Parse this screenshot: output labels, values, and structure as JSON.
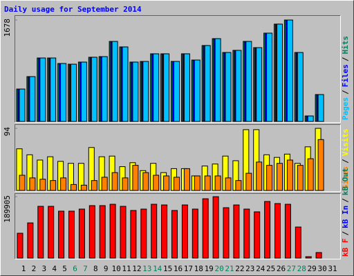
{
  "chart_data": {
    "type": "bar",
    "title": "Daily usage for September 2014",
    "title_color": "#0000ff",
    "categories": [
      "1",
      "2",
      "3",
      "4",
      "5",
      "6",
      "7",
      "8",
      "9",
      "10",
      "11",
      "12",
      "13",
      "14",
      "15",
      "16",
      "17",
      "18",
      "19",
      "20",
      "21",
      "22",
      "23",
      "24",
      "25",
      "26",
      "27",
      "28",
      "29",
      "30",
      "31"
    ],
    "category_colors": [
      "#000000",
      "#000000",
      "#000000",
      "#000000",
      "#000000",
      "#00805c",
      "#00805c",
      "#000000",
      "#000000",
      "#000000",
      "#000000",
      "#000000",
      "#00805c",
      "#00805c",
      "#000000",
      "#000000",
      "#000000",
      "#000000",
      "#000000",
      "#00805c",
      "#00805c",
      "#000000",
      "#000000",
      "#000000",
      "#000000",
      "#000000",
      "#00805c",
      "#00805c",
      "#000000",
      "#000000",
      "#000000"
    ],
    "legend_separator": "/",
    "panels": [
      {
        "ylim": [
          0,
          1678
        ],
        "yticks": [
          1678
        ],
        "series": [
          {
            "name": "Pages",
            "color": "#00c0ff",
            "values": [
              536,
              742,
              1050,
              1050,
              959,
              947,
              982,
              1062,
              1073,
              1324,
              1233,
              982,
              993,
              1119,
              1119,
              993,
              1119,
              1016,
              1256,
              1370,
              1141,
              1176,
              1324,
              1221,
              1461,
              1610,
              1678,
              1141,
              91,
              445,
              0
            ]
          },
          {
            "name": "Files",
            "color": "#0000ff",
            "values": [
              536,
              742,
              1050,
              1050,
              959,
              947,
              982,
              1062,
              1073,
              1324,
              1233,
              982,
              993,
              1119,
              1119,
              993,
              1119,
              1016,
              1256,
              1370,
              1141,
              1176,
              1324,
              1221,
              1461,
              1610,
              1678,
              1141,
              91,
              445,
              0
            ]
          },
          {
            "name": "Hits",
            "color": "#00805c",
            "values": [
              536,
              742,
              1050,
              1050,
              959,
              947,
              982,
              1062,
              1073,
              1324,
              1233,
              982,
              993,
              1119,
              1119,
              993,
              1119,
              1016,
              1256,
              1370,
              1141,
              1176,
              1324,
              1221,
              1461,
              1610,
              1678,
              1141,
              91,
              445,
              0
            ]
          }
        ]
      },
      {
        "ylim": [
          0,
          94
        ],
        "yticks": [
          94
        ],
        "series": [
          {
            "name": "Sites",
            "color": "#ff8000",
            "values": [
              23,
              19,
              17,
              15,
              19,
              9,
              8,
              15,
              20,
              27,
              19,
              38,
              27,
              23,
              22,
              20,
              33,
              22,
              22,
              22,
              19,
              15,
              26,
              43,
              38,
              41,
              46,
              38,
              48,
              77,
              0
            ]
          },
          {
            "name": "Visits",
            "color": "#ffff00",
            "values": [
              63,
              54,
              46,
              51,
              44,
              41,
              41,
              65,
              51,
              52,
              36,
              42,
              30,
              41,
              27,
              33,
              33,
              22,
              37,
              40,
              52,
              45,
              92,
              92,
              54,
              50,
              55,
              41,
              66,
              94,
              0
            ]
          }
        ]
      },
      {
        "ylim": [
          0,
          189905
        ],
        "yticks": [
          189905
        ],
        "series": [
          {
            "name": "kB F",
            "color": "#ff0000",
            "values": [
              76800,
              108800,
              160000,
              160000,
              145100,
              145100,
              151500,
              162200,
              162200,
              166400,
              160000,
              147200,
              151500,
              166400,
              164300,
              147200,
              164300,
              151500,
              183500,
              189905,
              155800,
              164300,
              151500,
              143000,
              175000,
              168600,
              166400,
              96000,
              4300,
              17100,
              0
            ]
          },
          {
            "name": "kB In",
            "color": "#0000ff"
          },
          {
            "name": "kB Out",
            "color": "#00805c"
          }
        ]
      }
    ]
  }
}
